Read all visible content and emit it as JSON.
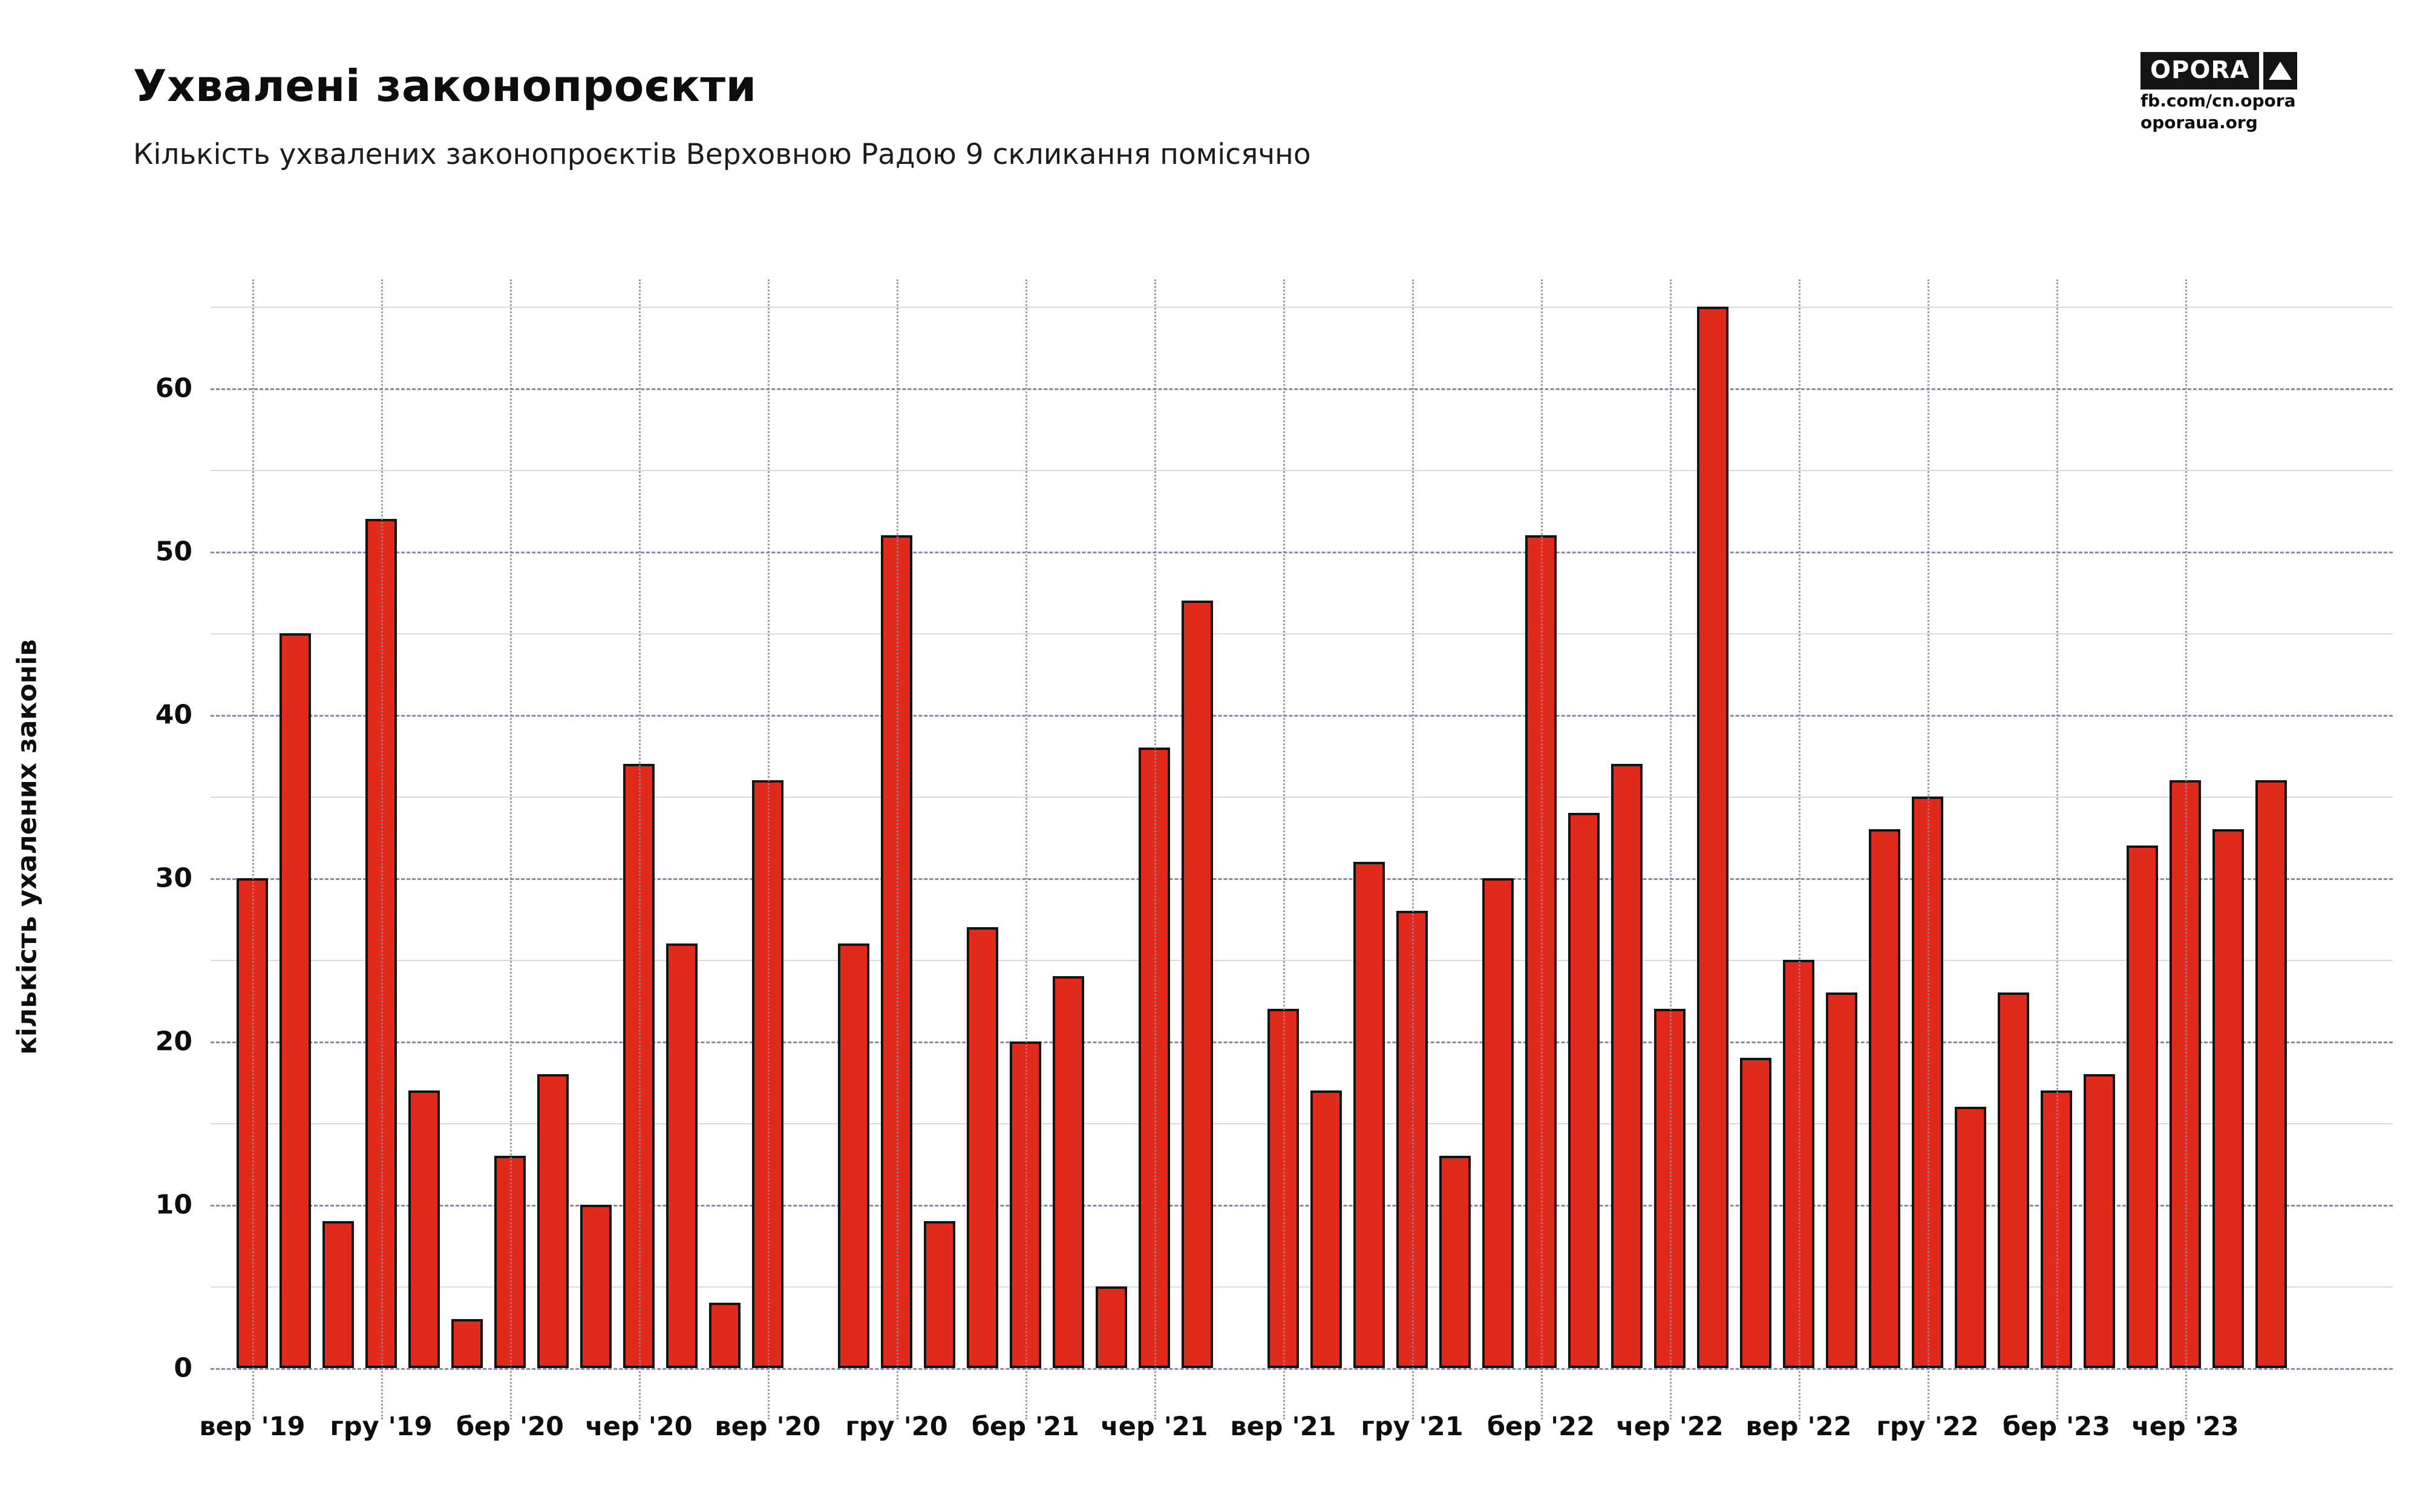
{
  "header": {
    "title": "Ухвалені законопроєкти",
    "subtitle": "Кількість ухвалених законопроєктів Верховною Радою 9 скликання помісячно"
  },
  "logo": {
    "brand": "OPORA",
    "line1": "fb.com/cn.opora",
    "line2": "oporaua.org"
  },
  "chart_data": {
    "type": "bar",
    "title": "Ухвалені законопроєкти",
    "xlabel": "",
    "ylabel": "кількість ухалених законів",
    "ylim": [
      0,
      68
    ],
    "grid": "major dashed horizontal every 10, minor solid every 5, dotted vertical at labeled ticks",
    "legend": "none",
    "bar_color": "#e02b1c",
    "bar_outline": "#141414",
    "values": [
      30,
      45,
      9,
      52,
      17,
      3,
      13,
      18,
      10,
      37,
      26,
      4,
      36,
      null,
      26,
      51,
      9,
      27,
      20,
      24,
      5,
      38,
      47,
      null,
      22,
      17,
      31,
      28,
      13,
      30,
      51,
      34,
      37,
      22,
      65,
      19,
      25,
      23,
      33,
      35,
      16,
      23,
      17,
      18,
      32,
      36,
      33,
      36
    ],
    "y_ticks": [
      0,
      10,
      20,
      30,
      40,
      50,
      60
    ],
    "x_ticks": [
      {
        "index": 0,
        "label": "вер '19"
      },
      {
        "index": 3,
        "label": "гру '19"
      },
      {
        "index": 6,
        "label": "бер '20"
      },
      {
        "index": 9,
        "label": "чер '20"
      },
      {
        "index": 12,
        "label": "вер '20"
      },
      {
        "index": 15,
        "label": "гру '20"
      },
      {
        "index": 18,
        "label": "бер '21"
      },
      {
        "index": 21,
        "label": "чер '21"
      },
      {
        "index": 24,
        "label": "вер '21"
      },
      {
        "index": 27,
        "label": "гру '21"
      },
      {
        "index": 30,
        "label": "бер '22"
      },
      {
        "index": 33,
        "label": "чер '22"
      },
      {
        "index": 36,
        "label": "вер '22"
      },
      {
        "index": 39,
        "label": "гру '22"
      },
      {
        "index": 42,
        "label": "бер '23"
      },
      {
        "index": 45,
        "label": "чер '23"
      }
    ]
  }
}
